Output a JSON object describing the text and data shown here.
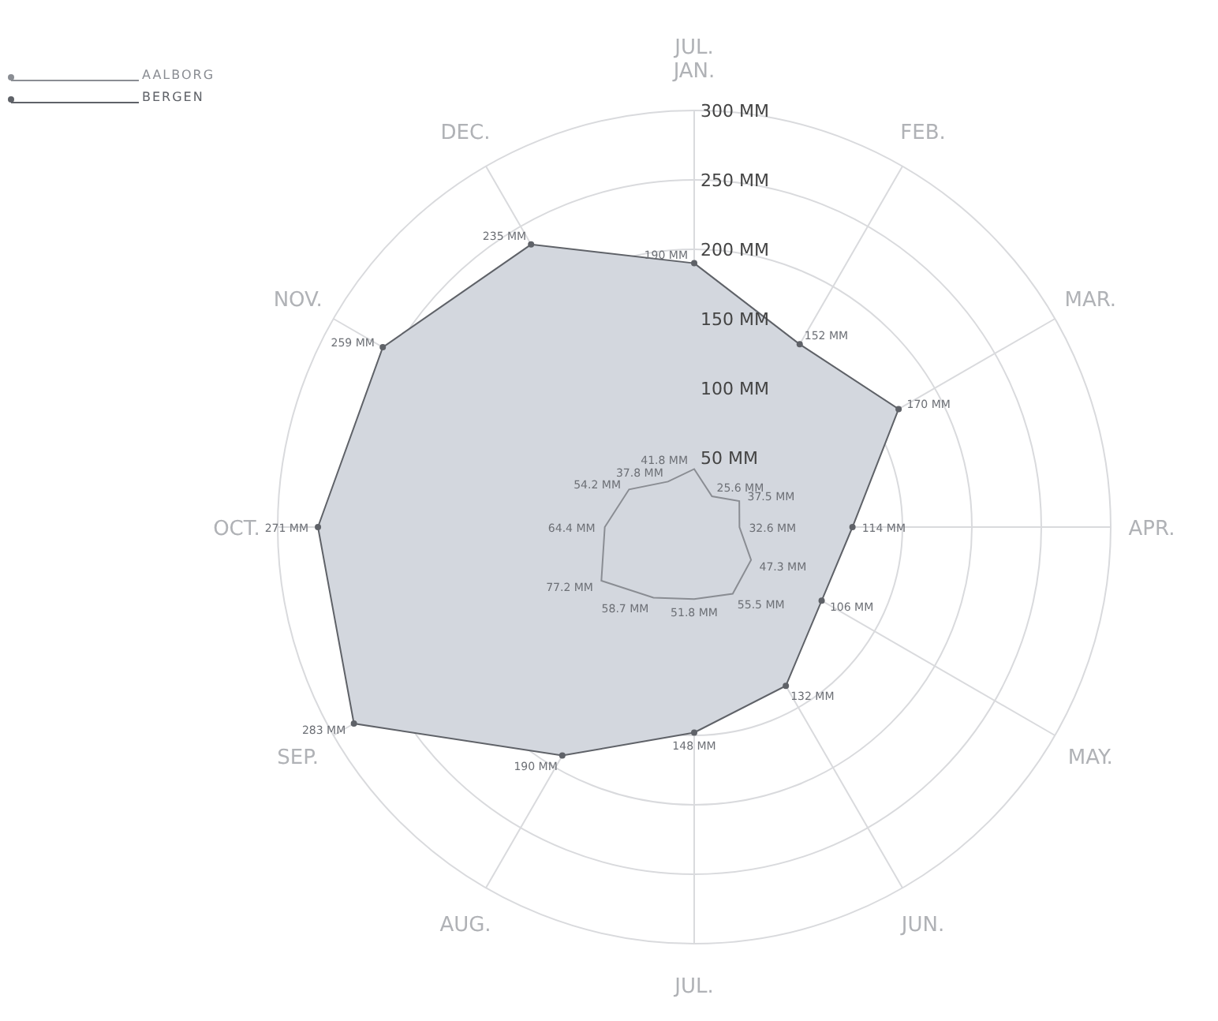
{
  "chart_data": {
    "type": "radar",
    "categories": [
      "JAN.",
      "FEB.",
      "MAR.",
      "APR.",
      "MAY.",
      "JUN.",
      "JUL.",
      "AUG.",
      "SEP.",
      "OCT.",
      "NOV.",
      "DEC."
    ],
    "series": [
      {
        "name": "AALBORG",
        "color": "#8a8d93",
        "values": [
          41.8,
          25.6,
          37.5,
          32.6,
          47.3,
          55.5,
          51.8,
          58.7,
          77.2,
          64.4,
          54.2,
          37.8
        ],
        "value_labels": [
          "41.8 MM",
          "25.6 MM",
          "37.5 MM",
          "32.6 MM",
          "47.3 MM",
          "55.5 MM",
          "51.8 MM",
          "58.7 MM",
          "77.2 MM",
          "64.4 MM",
          "54.2 MM",
          "37.8 MM"
        ]
      },
      {
        "name": "BERGEN",
        "color": "#5f6268",
        "values": [
          190,
          152,
          170,
          114,
          106,
          132,
          148,
          190,
          283,
          271,
          259,
          235
        ],
        "value_labels": [
          "190 MM",
          "152 MM",
          "170 MM",
          "114 MM",
          "106 MM",
          "132 MM",
          "148 MM",
          "190 MM",
          "283 MM",
          "271 MM",
          "259 MM",
          "235 MM"
        ]
      }
    ],
    "ylim": [
      0,
      300
    ],
    "yticks": [
      {
        "value": 50,
        "label": "50 MM"
      },
      {
        "value": 100,
        "label": "100 MM"
      },
      {
        "value": 150,
        "label": "150 MM"
      },
      {
        "value": 200,
        "label": "200 MM"
      },
      {
        "value": 250,
        "label": "250 MM"
      },
      {
        "value": 300,
        "label": "300 MM"
      }
    ],
    "grid": true,
    "legend": "top left",
    "marker": "circle",
    "annotations": [
      "JUL."
    ]
  }
}
